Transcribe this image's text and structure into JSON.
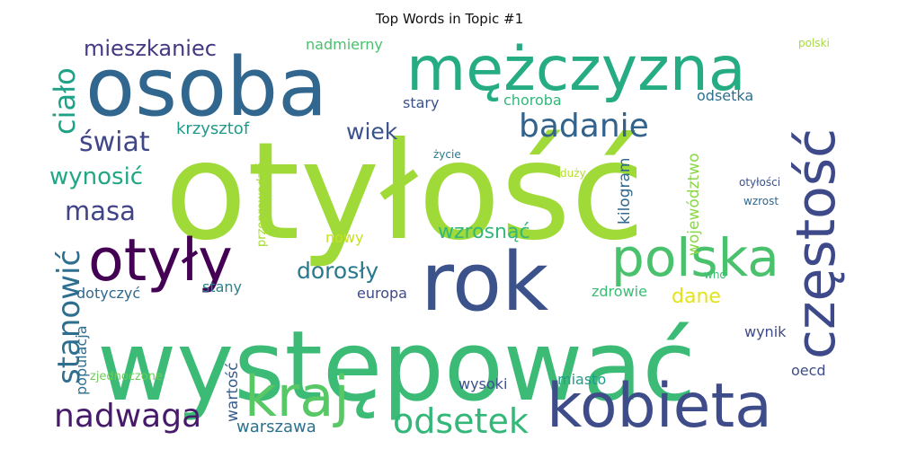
{
  "chart_data": {
    "type": "wordcloud",
    "title": "Top Words in Topic #1",
    "words": [
      {
        "text": "otyłość",
        "weight": 1.0,
        "color": "#a0da39",
        "rotate": false
      },
      {
        "text": "występować",
        "weight": 0.72,
        "color": "#3bbb75",
        "rotate": false
      },
      {
        "text": "osoba",
        "weight": 0.62,
        "color": "#31668e",
        "rotate": false
      },
      {
        "text": "rok",
        "weight": 0.6,
        "color": "#3b528b",
        "rotate": false
      },
      {
        "text": "mężczyzna",
        "weight": 0.47,
        "color": "#25ac82",
        "rotate": false
      },
      {
        "text": "kobieta",
        "weight": 0.47,
        "color": "#3e4c8a",
        "rotate": false
      },
      {
        "text": "otyły",
        "weight": 0.42,
        "color": "#440154",
        "rotate": false
      },
      {
        "text": "częstość",
        "weight": 0.38,
        "color": "#3e4989",
        "rotate": true
      },
      {
        "text": "kraj",
        "weight": 0.4,
        "color": "#58c765",
        "rotate": false
      },
      {
        "text": "polska",
        "weight": 0.38,
        "color": "#4ac16d",
        "rotate": false
      },
      {
        "text": "odsetek",
        "weight": 0.25,
        "color": "#35b779",
        "rotate": false
      },
      {
        "text": "nadwaga",
        "weight": 0.24,
        "color": "#481a6c",
        "rotate": false
      },
      {
        "text": "badanie",
        "weight": 0.23,
        "color": "#33638d",
        "rotate": false
      },
      {
        "text": "stanowić",
        "weight": 0.22,
        "color": "#2e6e8e",
        "rotate": true
      },
      {
        "text": "ciało",
        "weight": 0.21,
        "color": "#1fa187",
        "rotate": true
      },
      {
        "text": "świat",
        "weight": 0.2,
        "color": "#3f4788",
        "rotate": false
      },
      {
        "text": "masa",
        "weight": 0.19,
        "color": "#414487",
        "rotate": false
      },
      {
        "text": "wynosić",
        "weight": 0.17,
        "color": "#22a785",
        "rotate": false
      },
      {
        "text": "dorosły",
        "weight": 0.15,
        "color": "#2a788e",
        "rotate": false
      },
      {
        "text": "wiek",
        "weight": 0.15,
        "color": "#3b528b",
        "rotate": false
      },
      {
        "text": "mieszkaniec",
        "weight": 0.14,
        "color": "#443983",
        "rotate": false
      },
      {
        "text": "wzrosnąć",
        "weight": 0.13,
        "color": "#35b779",
        "rotate": false
      },
      {
        "text": "dane",
        "weight": 0.13,
        "color": "#e2e418",
        "rotate": false
      },
      {
        "text": "warszawa",
        "weight": 0.11,
        "color": "#2c728e",
        "rotate": false
      },
      {
        "text": "krzysztof",
        "weight": 0.11,
        "color": "#1f9a8a",
        "rotate": false
      },
      {
        "text": "województwo",
        "weight": 0.1,
        "color": "#8bd646",
        "rotate": true
      },
      {
        "text": "kilogram",
        "weight": 0.1,
        "color": "#30698e",
        "rotate": true
      },
      {
        "text": "wartość",
        "weight": 0.1,
        "color": "#365d8d",
        "rotate": true
      },
      {
        "text": "populacja",
        "weight": 0.1,
        "color": "#2e6f8e",
        "rotate": true
      },
      {
        "text": "choroba",
        "weight": 0.1,
        "color": "#32b67a",
        "rotate": false
      },
      {
        "text": "nadmierny",
        "weight": 0.1,
        "color": "#4ac16d",
        "rotate": false
      },
      {
        "text": "stary",
        "weight": 0.1,
        "color": "#3b528b",
        "rotate": false
      },
      {
        "text": "odsetka",
        "weight": 0.1,
        "color": "#2d708e",
        "rotate": false
      },
      {
        "text": "europa",
        "weight": 0.09,
        "color": "#3e4a89",
        "rotate": false
      },
      {
        "text": "dotyczyć",
        "weight": 0.09,
        "color": "#31688e",
        "rotate": false
      },
      {
        "text": "stany",
        "weight": 0.09,
        "color": "#26828e",
        "rotate": false
      },
      {
        "text": "nowy",
        "weight": 0.09,
        "color": "#c8e020",
        "rotate": false
      },
      {
        "text": "zdrowie",
        "weight": 0.09,
        "color": "#3dbc74",
        "rotate": false
      },
      {
        "text": "miasto",
        "weight": 0.09,
        "color": "#1f9e89",
        "rotate": false
      },
      {
        "text": "wysoki",
        "weight": 0.09,
        "color": "#3b528b",
        "rotate": false
      },
      {
        "text": "wynik",
        "weight": 0.09,
        "color": "#3e4a89",
        "rotate": false
      },
      {
        "text": "oecd",
        "weight": 0.09,
        "color": "#3e4c8a",
        "rotate": false
      },
      {
        "text": "zjednoczone",
        "weight": 0.07,
        "color": "#6ccd5a",
        "rotate": false
      },
      {
        "text": "przeprowadzić",
        "weight": 0.07,
        "color": "#a5db36",
        "rotate": true
      },
      {
        "text": "życie",
        "weight": 0.06,
        "color": "#2a788e",
        "rotate": false
      },
      {
        "text": "duży",
        "weight": 0.06,
        "color": "#b5de2b",
        "rotate": false
      },
      {
        "text": "otyłości",
        "weight": 0.06,
        "color": "#3b528b",
        "rotate": false
      },
      {
        "text": "wzrost",
        "weight": 0.06,
        "color": "#31688e",
        "rotate": false
      },
      {
        "text": "who",
        "weight": 0.05,
        "color": "#3dbc74",
        "rotate": false
      },
      {
        "text": "polski",
        "weight": 0.06,
        "color": "#a5db36",
        "rotate": false
      }
    ]
  }
}
